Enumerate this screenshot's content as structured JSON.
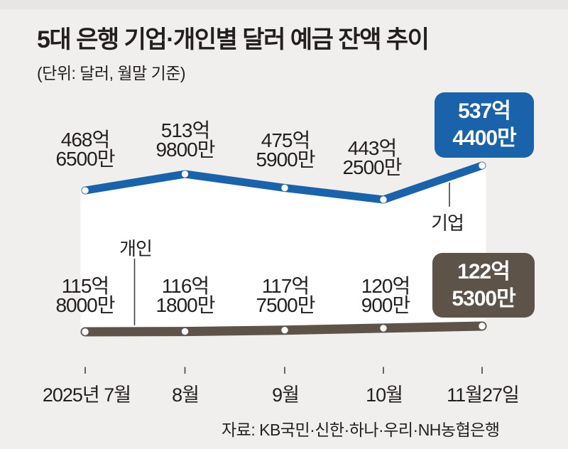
{
  "page": {
    "background_color": "#f0efed",
    "top_strip_color": "#e8e6e4",
    "text_color": "#231f1e"
  },
  "chart_data": {
    "type": "line",
    "title": "5대 은행 기업·개인별 달러 예금 잔액 추이",
    "subtitle": "(단위: 달러, 월말 기준)",
    "categories": [
      "2025년 7월",
      "8월",
      "9월",
      "10월",
      "11월27일"
    ],
    "grid": false,
    "legend_position": "inline-callouts",
    "between_area_color": "#ffffff",
    "series": [
      {
        "name": "기업",
        "color": "#1a63ab",
        "unit": "억 달러",
        "values_eok": [
          468.65,
          513.98,
          475.59,
          443.25,
          537.44
        ],
        "labels": [
          [
            "468억",
            "6500만"
          ],
          [
            "513억",
            "9800만"
          ],
          [
            "475억",
            "5900만"
          ],
          [
            "443억",
            "2500만"
          ],
          [
            "537억",
            "4400만"
          ]
        ],
        "last_value_highlighted": true
      },
      {
        "name": "개인",
        "color": "#5e5349",
        "unit": "억 달러",
        "values_eok": [
          115.8,
          116.18,
          117.75,
          120.09,
          122.53
        ],
        "labels": [
          [
            "115억",
            "8000만"
          ],
          [
            "116억",
            "1800만"
          ],
          [
            "117억",
            "7500만"
          ],
          [
            "120억",
            "900만"
          ],
          [
            "122억",
            "5300만"
          ]
        ],
        "last_value_highlighted": true
      }
    ],
    "source": "자료: KB국민·신한·하나·우리·NH농협은행"
  }
}
